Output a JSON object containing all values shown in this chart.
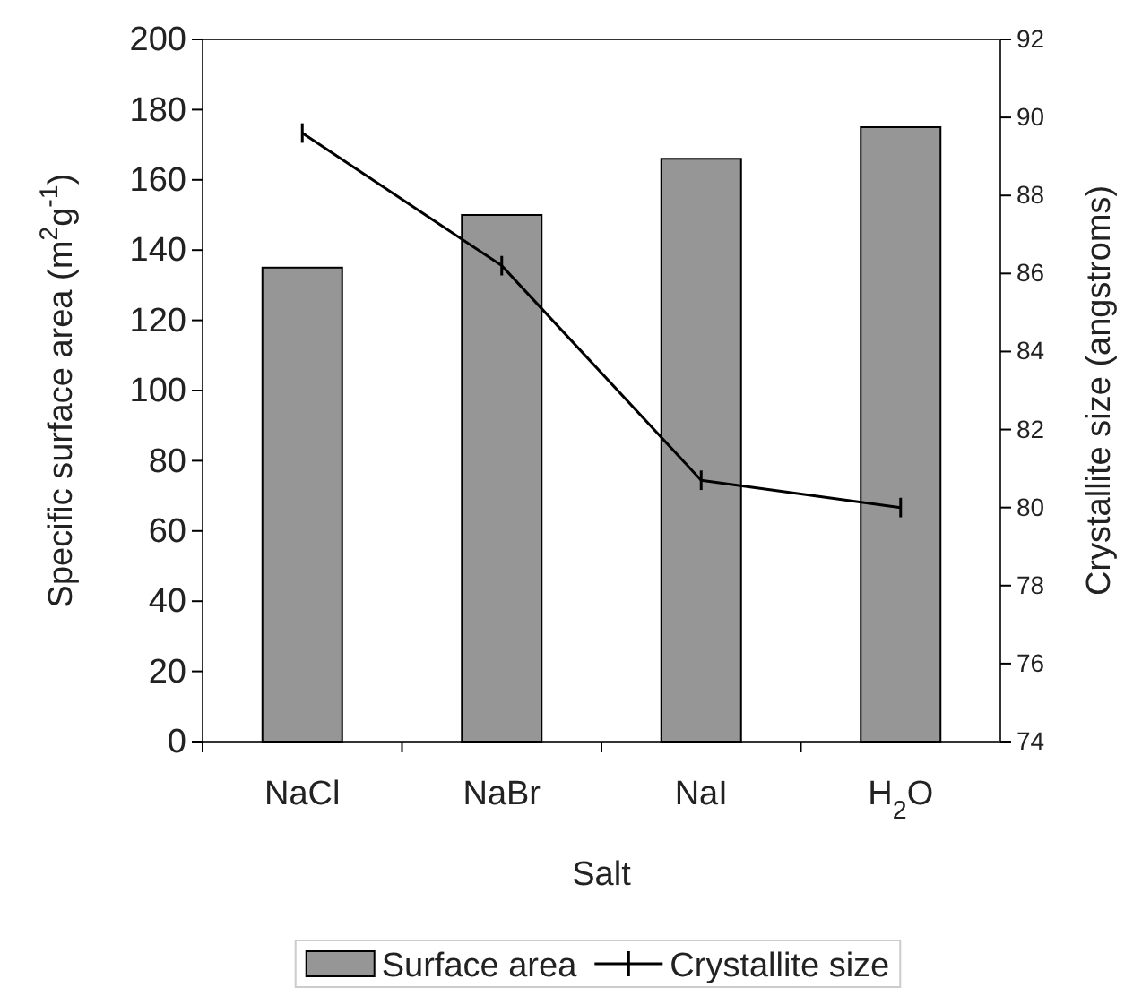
{
  "chart_data": {
    "type": "bar",
    "xlabel": "Salt",
    "ylabel": "Specific surface area (m$^{2}$g$^{-1}$)",
    "y2label": "Crystallite size (angstroms)",
    "categories": [
      "NaCl",
      "NaBr",
      "NaI",
      "H$_{2}$O"
    ],
    "series": [
      {
        "name": "Surface area",
        "color": "#969696",
        "values": [
          135,
          150,
          166,
          175
        ]
      },
      {
        "name": "Crystallite size",
        "type": "line",
        "axis": "y2",
        "color": "#000000",
        "values": [
          89.6,
          86.2,
          80.7,
          80.0
        ],
        "errors": [
          0.25,
          0.25,
          0.25,
          0.25
        ]
      }
    ],
    "ylim": [
      0,
      200
    ],
    "yticks": [
      0,
      20,
      40,
      60,
      80,
      100,
      120,
      140,
      160,
      180,
      200
    ],
    "y2lim": [
      74,
      92
    ],
    "y2ticks": [
      74,
      76,
      78,
      80,
      82,
      84,
      86,
      88,
      90,
      92
    ],
    "legend": "bottom",
    "grid": false
  }
}
